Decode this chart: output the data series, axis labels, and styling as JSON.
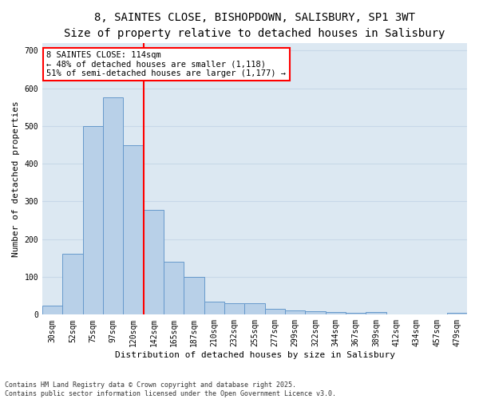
{
  "title_line1": "8, SAINTES CLOSE, BISHOPDOWN, SALISBURY, SP1 3WT",
  "title_line2": "Size of property relative to detached houses in Salisbury",
  "xlabel": "Distribution of detached houses by size in Salisbury",
  "ylabel": "Number of detached properties",
  "bar_labels": [
    "30sqm",
    "52sqm",
    "75sqm",
    "97sqm",
    "120sqm",
    "142sqm",
    "165sqm",
    "187sqm",
    "210sqm",
    "232sqm",
    "255sqm",
    "277sqm",
    "299sqm",
    "322sqm",
    "344sqm",
    "367sqm",
    "389sqm",
    "412sqm",
    "434sqm",
    "457sqm",
    "479sqm"
  ],
  "bar_values": [
    25,
    162,
    500,
    575,
    450,
    278,
    140,
    100,
    35,
    30,
    30,
    15,
    12,
    10,
    7,
    5,
    8,
    0,
    0,
    0,
    4
  ],
  "bar_color": "#b8d0e8",
  "bar_edge_color": "#6699cc",
  "grid_color": "#c8d8e8",
  "background_color": "#dce8f2",
  "vline_color": "red",
  "vline_x_index": 4,
  "annotation_text": "8 SAINTES CLOSE: 114sqm\n← 48% of detached houses are smaller (1,118)\n51% of semi-detached houses are larger (1,177) →",
  "annotation_box_color": "white",
  "annotation_border_color": "red",
  "ylim": [
    0,
    720
  ],
  "yticks": [
    0,
    100,
    200,
    300,
    400,
    500,
    600,
    700
  ],
  "footnote": "Contains HM Land Registry data © Crown copyright and database right 2025.\nContains public sector information licensed under the Open Government Licence v3.0.",
  "title_fontsize": 10,
  "subtitle_fontsize": 9,
  "axis_label_fontsize": 8,
  "tick_fontsize": 7,
  "annotation_fontsize": 7.5,
  "footnote_fontsize": 6
}
